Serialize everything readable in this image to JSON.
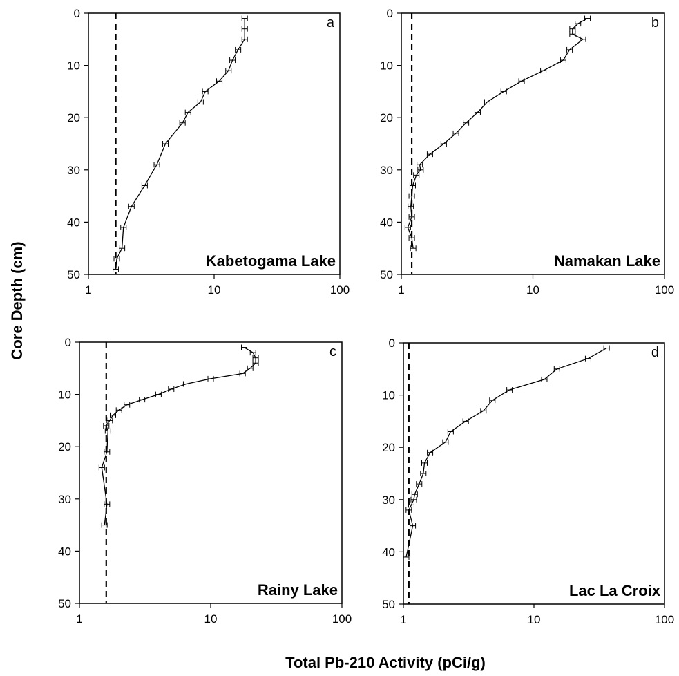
{
  "figure": {
    "xlabel": "Total Pb-210 Activity (pCi/g)",
    "ylabel": "Core Depth (cm)"
  },
  "chart_data": [
    {
      "type": "line",
      "letter": "a",
      "title": "Kabetogama Lake",
      "xscale": "log",
      "xlim": [
        1,
        100
      ],
      "ylim": [
        0,
        50
      ],
      "y_inverted": true,
      "xticks": [
        "1",
        "10",
        "100"
      ],
      "yticks": [
        "0",
        "10",
        "20",
        "30",
        "40",
        "50"
      ],
      "background_x": 1.65,
      "error_bars": true,
      "series": [
        {
          "points": [
            [
              17.5,
              1
            ],
            [
              17.5,
              3
            ],
            [
              17.5,
              5
            ],
            [
              15.5,
              7
            ],
            [
              14,
              9
            ],
            [
              13,
              11
            ],
            [
              11,
              13
            ],
            [
              8.5,
              15
            ],
            [
              7.8,
              17
            ],
            [
              6.2,
              19
            ],
            [
              5.6,
              21
            ],
            [
              4.1,
              25
            ],
            [
              3.5,
              29
            ],
            [
              2.8,
              33
            ],
            [
              2.2,
              37
            ],
            [
              1.9,
              41
            ],
            [
              1.85,
              45
            ],
            [
              1.68,
              47
            ],
            [
              1.65,
              49
            ]
          ]
        }
      ]
    },
    {
      "type": "line",
      "letter": "b",
      "title": "Namakan Lake",
      "xscale": "log",
      "xlim": [
        1,
        100
      ],
      "ylim": [
        0,
        50
      ],
      "y_inverted": true,
      "xticks": [
        "1",
        "10",
        "100"
      ],
      "yticks": [
        "0",
        "10",
        "20",
        "30",
        "40",
        "50"
      ],
      "background_x": 1.2,
      "error_bars": true,
      "series": [
        {
          "points": [
            [
              26,
              1
            ],
            [
              22,
              2
            ],
            [
              20,
              3
            ],
            [
              20,
              4
            ],
            [
              24,
              5
            ],
            [
              19,
              7
            ],
            [
              17,
              9
            ],
            [
              12,
              11
            ],
            [
              8.2,
              13
            ],
            [
              6,
              15
            ],
            [
              4.5,
              17
            ],
            [
              3.8,
              19
            ],
            [
              3.1,
              21
            ],
            [
              2.6,
              23
            ],
            [
              2.1,
              25
            ],
            [
              1.65,
              27
            ],
            [
              1.38,
              29
            ],
            [
              1.4,
              30
            ],
            [
              1.3,
              31
            ],
            [
              1.22,
              33
            ],
            [
              1.2,
              35
            ],
            [
              1.18,
              37
            ],
            [
              1.2,
              39
            ],
            [
              1.12,
              41
            ],
            [
              1.2,
              43
            ],
            [
              1.23,
              45
            ]
          ]
        }
      ]
    },
    {
      "type": "line",
      "letter": "c",
      "title": "Rainy Lake",
      "xscale": "log",
      "xlim": [
        1,
        100
      ],
      "ylim": [
        0,
        50
      ],
      "y_inverted": true,
      "xticks": [
        "1",
        "10",
        "100"
      ],
      "yticks": [
        "0",
        "10",
        "20",
        "30",
        "40",
        "50"
      ],
      "background_x": 1.6,
      "error_bars": true,
      "series": [
        {
          "points": [
            [
              18,
              1
            ],
            [
              21,
              2
            ],
            [
              22,
              3
            ],
            [
              22,
              4
            ],
            [
              20,
              5
            ],
            [
              17.5,
              6
            ],
            [
              10,
              7
            ],
            [
              6.5,
              8
            ],
            [
              5,
              9
            ],
            [
              4,
              10
            ],
            [
              3,
              11
            ],
            [
              2.3,
              12
            ],
            [
              2,
              13
            ],
            [
              1.8,
              14
            ],
            [
              1.7,
              15
            ],
            [
              1.6,
              16
            ],
            [
              1.65,
              17
            ],
            [
              1.62,
              21
            ],
            [
              1.48,
              24
            ],
            [
              1.62,
              31
            ],
            [
              1.55,
              35
            ]
          ]
        }
      ]
    },
    {
      "type": "line",
      "letter": "d",
      "title": "Lac La Croix",
      "xscale": "log",
      "xlim": [
        1,
        100
      ],
      "ylim": [
        0,
        50
      ],
      "y_inverted": true,
      "xticks": [
        "1",
        "10",
        "100"
      ],
      "yticks": [
        "0",
        "10",
        "20",
        "30",
        "40",
        "50"
      ],
      "background_x": 1.1,
      "error_bars": true,
      "series": [
        {
          "points": [
            [
              36,
              1
            ],
            [
              26,
              3
            ],
            [
              15,
              5
            ],
            [
              12,
              7
            ],
            [
              6.5,
              9
            ],
            [
              4.8,
              11
            ],
            [
              4.1,
              13
            ],
            [
              3,
              15
            ],
            [
              2.3,
              17
            ],
            [
              2.1,
              19
            ],
            [
              1.6,
              21
            ],
            [
              1.45,
              23
            ],
            [
              1.42,
              25
            ],
            [
              1.32,
              27
            ],
            [
              1.22,
              29
            ],
            [
              1.2,
              30
            ],
            [
              1.15,
              31
            ],
            [
              1.1,
              32
            ],
            [
              1.18,
              35
            ],
            [
              1.05,
              41
            ]
          ]
        }
      ]
    }
  ]
}
